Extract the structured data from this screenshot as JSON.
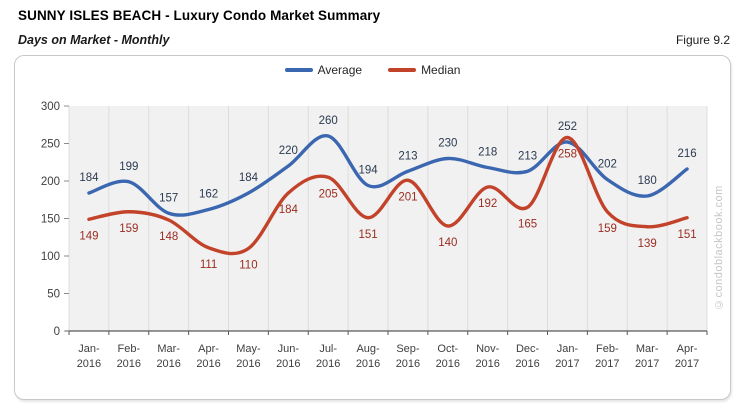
{
  "header": {
    "title": "SUNNY ISLES BEACH - Luxury Condo Market Summary",
    "subtitle": "Days on Market - Monthly",
    "figure_label": "Figure 9.2"
  },
  "legend": [
    {
      "label": "Average",
      "color": "#3b66b0"
    },
    {
      "label": "Median",
      "color": "#c2422a"
    }
  ],
  "watermark": "©condoblackbook.com",
  "chart_data": {
    "type": "line",
    "smooth": true,
    "title": "Days on Market - Monthly",
    "categories": [
      "Jan-2016",
      "Feb-2016",
      "Mar-2016",
      "Apr-2016",
      "May-2016",
      "Jun-2016",
      "Jul-2016",
      "Aug-2016",
      "Sep-2016",
      "Oct-2016",
      "Nov-2016",
      "Dec-2016",
      "Jan-2017",
      "Feb-2017",
      "Mar-2017",
      "Apr-2017"
    ],
    "series": [
      {
        "name": "Average",
        "color": "#3b66b0",
        "label_color": "#2b3b52",
        "label_position": "above",
        "values": [
          184,
          199,
          157,
          162,
          184,
          220,
          260,
          194,
          213,
          230,
          218,
          213,
          252,
          202,
          180,
          216
        ]
      },
      {
        "name": "Median",
        "color": "#c2422a",
        "label_color": "#9b2d21",
        "label_position": "below",
        "values": [
          149,
          159,
          148,
          111,
          110,
          184,
          205,
          151,
          201,
          140,
          192,
          165,
          258,
          159,
          139,
          151
        ]
      }
    ],
    "xlabel": "",
    "ylabel": "",
    "ylim": [
      0,
      300
    ],
    "y_ticks": [
      0,
      50,
      100,
      150,
      200,
      250,
      300
    ],
    "grid": "vertical",
    "legend_position": "top-center",
    "theme": {
      "plot_bg": "#f1f1f1",
      "grid_color": "#dcdcdc",
      "axis_line_color": "#595959",
      "tick_color": "#8c8c8c",
      "tick_label_color": "#404040",
      "watermark_color": "#c6c6c6"
    }
  }
}
